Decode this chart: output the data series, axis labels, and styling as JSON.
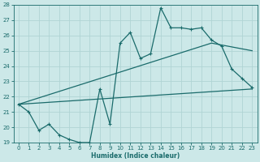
{
  "xlabel": "Humidex (Indice chaleur)",
  "xlim": [
    -0.5,
    23.5
  ],
  "ylim": [
    19,
    28
  ],
  "yticks": [
    19,
    20,
    21,
    22,
    23,
    24,
    25,
    26,
    27,
    28
  ],
  "xticks": [
    0,
    1,
    2,
    3,
    4,
    5,
    6,
    7,
    8,
    9,
    10,
    11,
    12,
    13,
    14,
    15,
    16,
    17,
    18,
    19,
    20,
    21,
    22,
    23
  ],
  "bg_color": "#cce8e8",
  "line_color": "#1a6b6b",
  "grid_color": "#b0d4d4",
  "main_x": [
    0,
    1,
    2,
    3,
    4,
    5,
    6,
    7,
    8,
    9,
    10,
    11,
    12,
    13,
    14,
    15,
    16,
    17,
    18,
    19,
    20,
    21,
    22,
    23
  ],
  "main_y": [
    21.5,
    21.0,
    19.8,
    20.2,
    19.5,
    19.2,
    19.0,
    19.0,
    22.5,
    20.2,
    25.5,
    26.2,
    24.5,
    24.8,
    27.8,
    26.5,
    26.5,
    26.4,
    26.5,
    25.7,
    25.3,
    23.8,
    23.2,
    22.6
  ],
  "trend1_x": [
    0,
    23
  ],
  "trend1_y": [
    21.5,
    22.5
  ],
  "trend2_x": [
    0,
    19,
    23
  ],
  "trend2_y": [
    21.5,
    25.5,
    25.0
  ]
}
